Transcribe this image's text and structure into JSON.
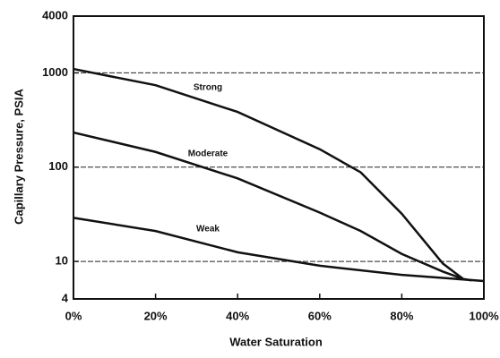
{
  "chart_data": {
    "type": "line",
    "x_label": "Water Saturation",
    "y_label": "Capillary Pressure, PSIA",
    "xlim": [
      0,
      100
    ],
    "xticks": [
      {
        "value": 0,
        "label": "0%"
      },
      {
        "value": 20,
        "label": "20%"
      },
      {
        "value": 40,
        "label": "40%"
      },
      {
        "value": 60,
        "label": "60%"
      },
      {
        "value": 80,
        "label": "80%"
      },
      {
        "value": 100,
        "label": "100%"
      }
    ],
    "ylim": [
      4,
      4000
    ],
    "yticks": [
      4,
      10,
      100,
      1000,
      4000
    ],
    "log_y": true,
    "grid": true,
    "series": [
      {
        "name": "Strong",
        "color": "#111111",
        "x": [
          0,
          20,
          40,
          60,
          70,
          80,
          90,
          95,
          97
        ],
        "values": [
          1100,
          740,
          385,
          155,
          88,
          32,
          9.5,
          6.5,
          6.3
        ]
      },
      {
        "name": "Moderate",
        "color": "#111111",
        "x": [
          0,
          20,
          40,
          60,
          70,
          80,
          90,
          95
        ],
        "values": [
          233,
          145,
          76,
          33,
          21,
          12,
          7.8,
          6.5
        ]
      },
      {
        "name": "Weak",
        "color": "#111111",
        "x": [
          0,
          20,
          40,
          60,
          80,
          100
        ],
        "values": [
          29,
          21,
          12.5,
          9,
          7.2,
          6.2
        ]
      }
    ]
  }
}
